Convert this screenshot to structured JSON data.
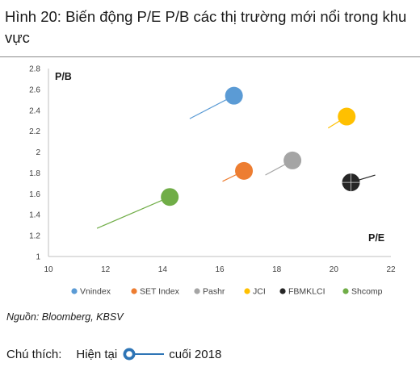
{
  "header": {
    "title": "Hình 20: Biến động P/E P/B các thị trường mới nổi trong khu vực"
  },
  "footer": {
    "source": "Nguồn: Bloomberg, KBSV",
    "note_label": "Chú thích:",
    "note_current": "Hiện tại",
    "note_previous": "cuối 2018"
  },
  "chart_data": {
    "type": "scatter",
    "title": "Hình 20: Biến động P/E P/B các thị trường mới nổi trong khu vực",
    "xlabel": "P/E",
    "ylabel": "P/B",
    "xlim": [
      10,
      22
    ],
    "ylim": [
      1,
      2.8
    ],
    "xticks": [
      10,
      12,
      14,
      16,
      18,
      20,
      22
    ],
    "yticks": [
      1,
      1.2,
      1.4,
      1.6,
      1.8,
      2,
      2.2,
      2.4,
      2.6,
      2.8
    ],
    "grid": false,
    "legend_position": "bottom",
    "series": [
      {
        "name": "Vnindex",
        "color": "#5b9bd5",
        "current": {
          "x": 16.5,
          "y": 2.54
        },
        "end_2018": {
          "x": 14.95,
          "y": 2.32
        }
      },
      {
        "name": "SET Index",
        "color": "#ed7d31",
        "current": {
          "x": 16.85,
          "y": 1.82
        },
        "end_2018": {
          "x": 16.1,
          "y": 1.72
        }
      },
      {
        "name": "Pashr",
        "color": "#a5a5a5",
        "current": {
          "x": 18.55,
          "y": 1.92
        },
        "end_2018": {
          "x": 17.6,
          "y": 1.78
        }
      },
      {
        "name": "JCI",
        "color": "#ffc000",
        "current": {
          "x": 20.45,
          "y": 2.34
        },
        "end_2018": {
          "x": 19.8,
          "y": 2.23
        }
      },
      {
        "name": "FBMKLCI",
        "color": "#262626",
        "current": {
          "x": 20.6,
          "y": 1.71
        },
        "end_2018": {
          "x": 21.45,
          "y": 1.78
        }
      },
      {
        "name": "Shcomp",
        "color": "#70ad47",
        "current": {
          "x": 14.25,
          "y": 1.57
        },
        "end_2018": {
          "x": 11.7,
          "y": 1.27
        }
      }
    ]
  }
}
